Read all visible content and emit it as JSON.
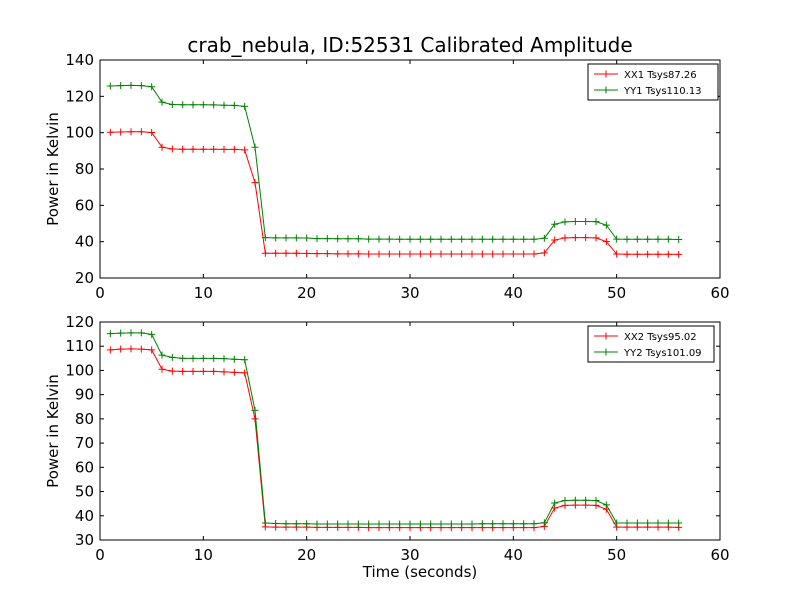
{
  "figure": {
    "title": "crab_nebula, ID:52531 Calibrated Amplitude",
    "background": "#ffffff"
  },
  "chart_data": [
    {
      "type": "line",
      "title": "crab_nebula, ID:52531 Calibrated Amplitude",
      "xlabel": "",
      "ylabel": "Power in Kelvin",
      "xlim": [
        0,
        60
      ],
      "ylim": [
        20,
        140
      ],
      "xticks": [
        0,
        10,
        20,
        30,
        40,
        50,
        60
      ],
      "yticks": [
        20,
        40,
        60,
        80,
        100,
        120,
        140
      ],
      "grid": false,
      "legend": "top-right",
      "marker": "+",
      "x": [
        1,
        2,
        3,
        4,
        5,
        6,
        7,
        8,
        9,
        10,
        11,
        12,
        13,
        14,
        15,
        16,
        17,
        18,
        19,
        20,
        21,
        22,
        23,
        24,
        25,
        26,
        27,
        28,
        29,
        30,
        31,
        32,
        33,
        34,
        35,
        36,
        37,
        38,
        39,
        40,
        41,
        42,
        43,
        44,
        45,
        46,
        47,
        48,
        49,
        50,
        51,
        52,
        53,
        54,
        55,
        56
      ],
      "series": [
        {
          "name": "XX1 Tsys87.26",
          "color": "#ff0000",
          "values": [
            100.2,
            100.4,
            100.5,
            100.5,
            100.1,
            92.0,
            91.0,
            90.9,
            90.9,
            90.9,
            90.9,
            90.8,
            90.8,
            90.5,
            72.5,
            33.6,
            33.6,
            33.6,
            33.6,
            33.5,
            33.4,
            33.4,
            33.3,
            33.3,
            33.3,
            33.2,
            33.2,
            33.2,
            33.2,
            33.2,
            33.2,
            33.2,
            33.2,
            33.2,
            33.2,
            33.2,
            33.2,
            33.2,
            33.2,
            33.2,
            33.2,
            33.2,
            33.8,
            40.9,
            42.1,
            42.2,
            42.2,
            42.1,
            40.0,
            33.2,
            33.1,
            33.1,
            33.1,
            33.1,
            33.1,
            33.0
          ]
        },
        {
          "name": "YY1 Tsys110.13",
          "color": "#008000",
          "values": [
            125.7,
            125.9,
            126.0,
            125.9,
            125.3,
            116.8,
            115.5,
            115.4,
            115.4,
            115.4,
            115.3,
            115.1,
            115.0,
            114.5,
            92.0,
            42.2,
            42.1,
            42.1,
            42.1,
            42.0,
            41.7,
            41.7,
            41.6,
            41.6,
            41.6,
            41.4,
            41.4,
            41.4,
            41.3,
            41.3,
            41.3,
            41.3,
            41.3,
            41.3,
            41.3,
            41.3,
            41.3,
            41.3,
            41.3,
            41.3,
            41.3,
            41.3,
            41.9,
            49.6,
            50.9,
            51.1,
            51.1,
            51.0,
            49.1,
            41.4,
            41.3,
            41.3,
            41.3,
            41.3,
            41.3,
            41.2
          ]
        }
      ]
    },
    {
      "type": "line",
      "title": "",
      "xlabel": "Time (seconds)",
      "ylabel": "Power in Kelvin",
      "xlim": [
        0,
        60
      ],
      "ylim": [
        30,
        120
      ],
      "xticks": [
        0,
        10,
        20,
        30,
        40,
        50,
        60
      ],
      "yticks": [
        30,
        40,
        50,
        60,
        70,
        80,
        90,
        100,
        110,
        120
      ],
      "grid": false,
      "legend": "top-right",
      "marker": "+",
      "x": [
        1,
        2,
        3,
        4,
        5,
        6,
        7,
        8,
        9,
        10,
        11,
        12,
        13,
        14,
        15,
        16,
        17,
        18,
        19,
        20,
        21,
        22,
        23,
        24,
        25,
        26,
        27,
        28,
        29,
        30,
        31,
        32,
        33,
        34,
        35,
        36,
        37,
        38,
        39,
        40,
        41,
        42,
        43,
        44,
        45,
        46,
        47,
        48,
        49,
        50,
        51,
        52,
        53,
        54,
        55,
        56
      ],
      "series": [
        {
          "name": "XX2 Tsys95.02",
          "color": "#ff0000",
          "values": [
            108.5,
            108.8,
            108.9,
            108.8,
            108.5,
            100.5,
            99.7,
            99.6,
            99.6,
            99.6,
            99.6,
            99.4,
            99.2,
            99.0,
            80.0,
            35.4,
            35.3,
            35.3,
            35.3,
            35.3,
            35.2,
            35.2,
            35.2,
            35.2,
            35.2,
            35.1,
            35.1,
            35.1,
            35.1,
            35.1,
            35.1,
            35.1,
            35.1,
            35.1,
            35.1,
            35.1,
            35.1,
            35.1,
            35.1,
            35.1,
            35.1,
            35.1,
            35.6,
            43.2,
            44.3,
            44.4,
            44.4,
            44.3,
            42.7,
            35.3,
            35.3,
            35.3,
            35.3,
            35.3,
            35.3,
            35.2
          ]
        },
        {
          "name": "YY2 Tsys101.09",
          "color": "#008000",
          "values": [
            115.2,
            115.4,
            115.5,
            115.5,
            114.9,
            106.3,
            105.4,
            105.0,
            105.0,
            105.0,
            105.0,
            104.9,
            104.6,
            104.4,
            83.5,
            37.0,
            36.8,
            36.7,
            36.7,
            36.7,
            36.6,
            36.6,
            36.6,
            36.6,
            36.6,
            36.6,
            36.6,
            36.6,
            36.6,
            36.6,
            36.6,
            36.6,
            36.6,
            36.6,
            36.6,
            36.6,
            36.7,
            36.7,
            36.7,
            36.7,
            36.7,
            36.7,
            37.1,
            45.3,
            46.3,
            46.4,
            46.4,
            46.3,
            44.5,
            37.0,
            37.0,
            37.0,
            37.0,
            37.0,
            37.0,
            37.0
          ]
        }
      ]
    }
  ]
}
